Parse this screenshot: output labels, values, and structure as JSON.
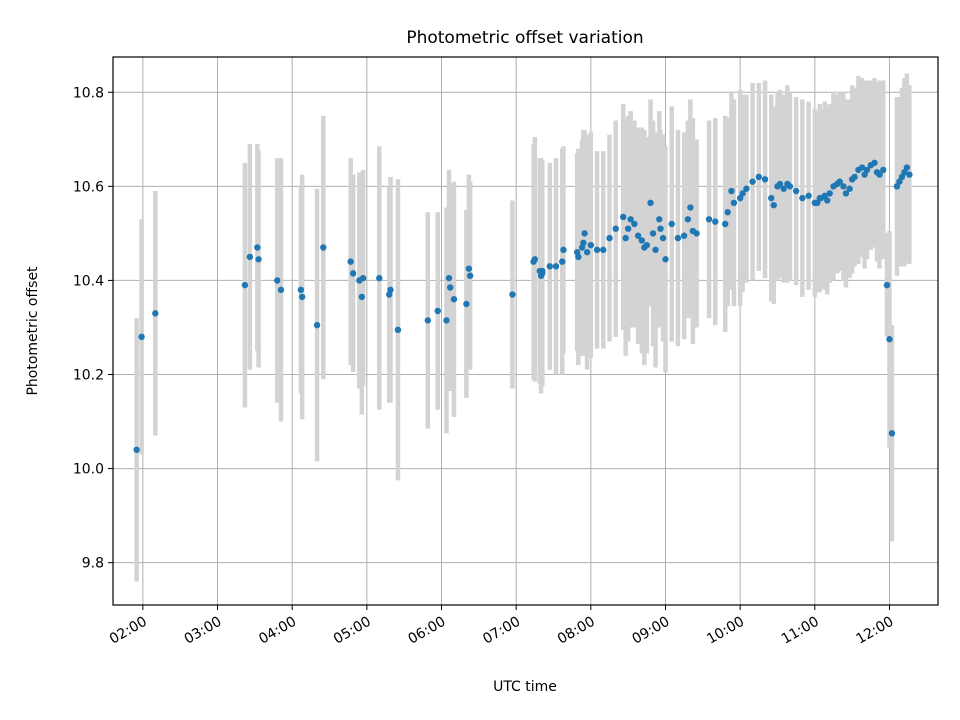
{
  "chart_data": {
    "type": "scatter",
    "title": "Photometric offset variation",
    "xlabel": "UTC time",
    "ylabel": "Photometric offset",
    "x_ticks": [
      "02:00",
      "03:00",
      "04:00",
      "05:00",
      "06:00",
      "07:00",
      "08:00",
      "09:00",
      "10:00",
      "11:00",
      "12:00"
    ],
    "y_ticks": [
      "9.8",
      "10.0",
      "10.2",
      "10.4",
      "10.6",
      "10.8"
    ],
    "xlim": [
      "01:36",
      "12:39"
    ],
    "ylim": [
      9.71,
      10.875
    ],
    "grid": true,
    "marker_color": "#1f77b4",
    "errorbar_color": "#d3d3d3",
    "series": [
      {
        "x": [
          "01:55",
          "01:59",
          "02:10",
          "03:22",
          "03:26",
          "03:32",
          "03:33",
          "03:48",
          "03:51",
          "04:07",
          "04:08",
          "04:20",
          "04:25",
          "04:47",
          "04:49",
          "04:54",
          "04:56",
          "04:57",
          "05:10",
          "05:18",
          "05:19",
          "05:25",
          "05:49",
          "05:57",
          "06:04",
          "06:06",
          "06:07",
          "06:10",
          "06:20",
          "06:22",
          "06:23",
          "06:57",
          "07:14",
          "07:15",
          "07:19",
          "07:20",
          "07:21",
          "07:21",
          "07:27",
          "07:32",
          "07:37",
          "07:38",
          "07:49",
          "07:50",
          "07:53",
          "07:54",
          "07:55",
          "07:57",
          "08:00",
          "08:05",
          "08:10",
          "08:15",
          "08:20",
          "08:26",
          "08:28",
          "08:30",
          "08:32",
          "08:35",
          "08:38",
          "08:41",
          "08:43",
          "08:45",
          "08:48",
          "08:50",
          "08:52",
          "08:55",
          "08:56",
          "08:58",
          "09:00",
          "09:05",
          "09:10",
          "09:15",
          "09:18",
          "09:20",
          "09:22",
          "09:25",
          "09:35",
          "09:40",
          "09:48",
          "09:50",
          "09:53",
          "09:55",
          "10:00",
          "10:02",
          "10:05",
          "10:10",
          "10:15",
          "10:20",
          "10:25",
          "10:27",
          "10:30",
          "10:32",
          "10:35",
          "10:38",
          "10:40",
          "10:45",
          "10:50",
          "10:55",
          "11:00",
          "11:02",
          "11:04",
          "11:05",
          "11:08",
          "11:10",
          "11:12",
          "11:15",
          "11:18",
          "11:20",
          "11:23",
          "11:25",
          "11:28",
          "11:30",
          "11:32",
          "11:35",
          "11:38",
          "11:40",
          "11:42",
          "11:45",
          "11:48",
          "11:50",
          "11:52",
          "11:55",
          "11:58",
          "12:00",
          "12:02",
          "12:06",
          "12:08",
          "12:10",
          "12:12",
          "12:14",
          "12:16"
        ],
        "y": [
          10.04,
          10.28,
          10.33,
          10.39,
          10.45,
          10.47,
          10.445,
          10.4,
          10.38,
          10.38,
          10.365,
          10.305,
          10.47,
          10.44,
          10.415,
          10.4,
          10.365,
          10.405,
          10.405,
          10.37,
          10.38,
          10.295,
          10.315,
          10.335,
          10.315,
          10.405,
          10.385,
          10.36,
          10.35,
          10.425,
          10.41,
          10.37,
          10.44,
          10.445,
          10.42,
          10.41,
          10.415,
          10.42,
          10.43,
          10.43,
          10.44,
          10.465,
          10.46,
          10.45,
          10.47,
          10.48,
          10.5,
          10.46,
          10.475,
          10.465,
          10.465,
          10.49,
          10.51,
          10.535,
          10.49,
          10.51,
          10.53,
          10.52,
          10.495,
          10.485,
          10.47,
          10.475,
          10.565,
          10.5,
          10.465,
          10.53,
          10.51,
          10.49,
          10.445,
          10.52,
          10.49,
          10.495,
          10.53,
          10.555,
          10.505,
          10.5,
          10.53,
          10.525,
          10.52,
          10.545,
          10.59,
          10.565,
          10.575,
          10.585,
          10.595,
          10.61,
          10.62,
          10.615,
          10.575,
          10.56,
          10.6,
          10.605,
          10.595,
          10.605,
          10.6,
          10.59,
          10.575,
          10.58,
          10.565,
          10.565,
          10.575,
          10.575,
          10.58,
          10.57,
          10.585,
          10.6,
          10.605,
          10.61,
          10.6,
          10.585,
          10.595,
          10.615,
          10.62,
          10.635,
          10.64,
          10.625,
          10.635,
          10.645,
          10.65,
          10.63,
          10.625,
          10.635,
          10.39,
          10.275,
          10.075,
          10.6,
          10.61,
          10.62,
          10.63,
          10.64,
          10.625
        ],
        "err": [
          0.28,
          0.25,
          0.26,
          0.26,
          0.24,
          0.22,
          0.23,
          0.26,
          0.28,
          0.22,
          0.26,
          0.29,
          0.28,
          0.22,
          0.21,
          0.23,
          0.25,
          0.23,
          0.28,
          0.23,
          0.24,
          0.32,
          0.23,
          0.21,
          0.24,
          0.23,
          0.22,
          0.25,
          0.2,
          0.2,
          0.2,
          0.2,
          0.25,
          0.26,
          0.24,
          0.25,
          0.24,
          0.23,
          0.22,
          0.23,
          0.24,
          0.22,
          0.21,
          0.23,
          0.23,
          0.24,
          0.22,
          0.25,
          0.24,
          0.21,
          0.21,
          0.22,
          0.23,
          0.24,
          0.25,
          0.24,
          0.23,
          0.22,
          0.23,
          0.24,
          0.25,
          0.23,
          0.22,
          0.24,
          0.25,
          0.23,
          0.21,
          0.22,
          0.24,
          0.25,
          0.23,
          0.22,
          0.21,
          0.23,
          0.24,
          0.2,
          0.21,
          0.22,
          0.23,
          0.2,
          0.21,
          0.22,
          0.23,
          0.21,
          0.2,
          0.21,
          0.2,
          0.21,
          0.22,
          0.21,
          0.2,
          0.2,
          0.2,
          0.21,
          0.2,
          0.2,
          0.21,
          0.2,
          0.2,
          0.19,
          0.2,
          0.19,
          0.2,
          0.2,
          0.19,
          0.2,
          0.19,
          0.19,
          0.2,
          0.2,
          0.19,
          0.2,
          0.19,
          0.2,
          0.19,
          0.2,
          0.19,
          0.18,
          0.18,
          0.19,
          0.2,
          0.19,
          0.11,
          0.23,
          0.23,
          0.19,
          0.18,
          0.19,
          0.2,
          0.2,
          0.19
        ]
      }
    ]
  }
}
